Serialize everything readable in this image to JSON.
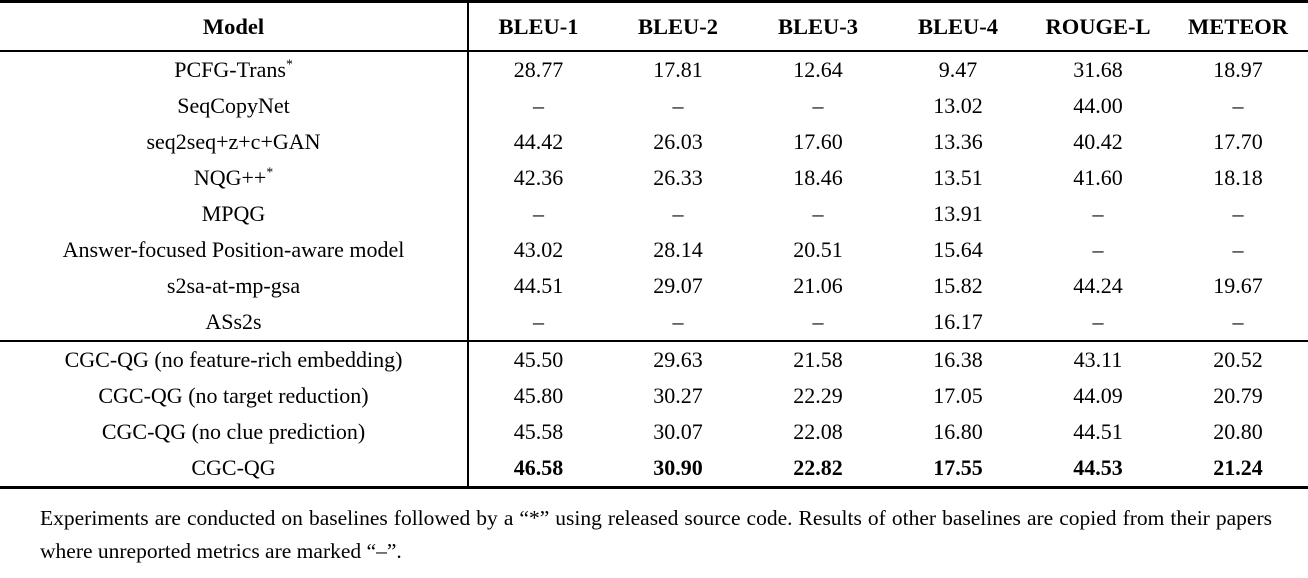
{
  "table": {
    "columns": [
      "Model",
      "BLEU-1",
      "BLEU-2",
      "BLEU-3",
      "BLEU-4",
      "ROUGE-L",
      "METEOR"
    ],
    "missing_marker": "–",
    "sections": [
      {
        "name": "baselines",
        "rows": [
          {
            "model": "PCFG-Trans",
            "model_sup": "*",
            "values": [
              "28.77",
              "17.81",
              "12.64",
              "9.47",
              "31.68",
              "18.97"
            ]
          },
          {
            "model": "SeqCopyNet",
            "values": [
              "–",
              "–",
              "–",
              "13.02",
              "44.00",
              "–"
            ]
          },
          {
            "model": "seq2seq+z+c+GAN",
            "values": [
              "44.42",
              "26.03",
              "17.60",
              "13.36",
              "40.42",
              "17.70"
            ]
          },
          {
            "model": "NQG++",
            "model_sup": "*",
            "values": [
              "42.36",
              "26.33",
              "18.46",
              "13.51",
              "41.60",
              "18.18"
            ]
          },
          {
            "model": "MPQG",
            "values": [
              "–",
              "–",
              "–",
              "13.91",
              "–",
              "–"
            ]
          },
          {
            "model": "Answer-focused Position-aware model",
            "values": [
              "43.02",
              "28.14",
              "20.51",
              "15.64",
              "–",
              "–"
            ]
          },
          {
            "model": "s2sa-at-mp-gsa",
            "values": [
              "44.51",
              "29.07",
              "21.06",
              "15.82",
              "44.24",
              "19.67"
            ]
          },
          {
            "model": "ASs2s",
            "values": [
              "–",
              "–",
              "–",
              "16.17",
              "–",
              "–"
            ]
          }
        ]
      },
      {
        "name": "proposed",
        "rows": [
          {
            "model": "CGC-QG (no feature-rich embedding)",
            "values": [
              "45.50",
              "29.63",
              "21.58",
              "16.38",
              "43.11",
              "20.52"
            ]
          },
          {
            "model": "CGC-QG (no target reduction)",
            "values": [
              "45.80",
              "30.27",
              "22.29",
              "17.05",
              "44.09",
              "20.79"
            ]
          },
          {
            "model": "CGC-QG (no clue prediction)",
            "values": [
              "45.58",
              "30.07",
              "22.08",
              "16.80",
              "44.51",
              "20.80"
            ]
          },
          {
            "model": "CGC-QG",
            "bold_values": true,
            "values": [
              "46.58",
              "30.90",
              "22.82",
              "17.55",
              "44.53",
              "21.24"
            ]
          }
        ]
      }
    ]
  },
  "caption": {
    "text": "Experiments are conducted on baselines followed by a “*” using released source code. Results of other baselines are copied from their papers where unreported metrics are marked “–”."
  }
}
